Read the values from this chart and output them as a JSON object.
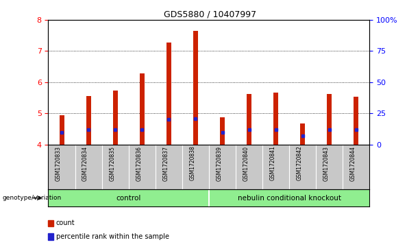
{
  "title": "GDS5880 / 10407997",
  "samples": [
    "GSM1720833",
    "GSM1720834",
    "GSM1720835",
    "GSM1720836",
    "GSM1720837",
    "GSM1720838",
    "GSM1720839",
    "GSM1720840",
    "GSM1720841",
    "GSM1720842",
    "GSM1720843",
    "GSM1720844"
  ],
  "bar_tops": [
    4.93,
    5.55,
    5.73,
    6.28,
    7.27,
    7.65,
    4.87,
    5.63,
    5.67,
    4.67,
    5.63,
    5.53
  ],
  "blue_markers": [
    4.38,
    4.48,
    4.48,
    4.48,
    4.8,
    4.82,
    4.38,
    4.48,
    4.48,
    4.27,
    4.48,
    4.48
  ],
  "bar_bottom": 4.0,
  "ylim": [
    4.0,
    8.0
  ],
  "yticks_left": [
    4,
    5,
    6,
    7,
    8
  ],
  "yticks_right": [
    0,
    25,
    50,
    75,
    100
  ],
  "yticks_right_labels": [
    "0",
    "25",
    "50",
    "75",
    "100%"
  ],
  "bar_color": "#cc2200",
  "blue_color": "#2222cc",
  "group_separator": 5.5,
  "group1_label": "control",
  "group2_label": "nebulin conditional knockout",
  "group_color": "#90ee90",
  "group_label_prefix": "genotype/variation",
  "legend_items": [
    {
      "color": "#cc2200",
      "label": "count"
    },
    {
      "color": "#2222cc",
      "label": "percentile rank within the sample"
    }
  ],
  "plot_bg": "#ffffff",
  "tick_area_bg": "#c8c8c8",
  "bar_width": 0.18
}
